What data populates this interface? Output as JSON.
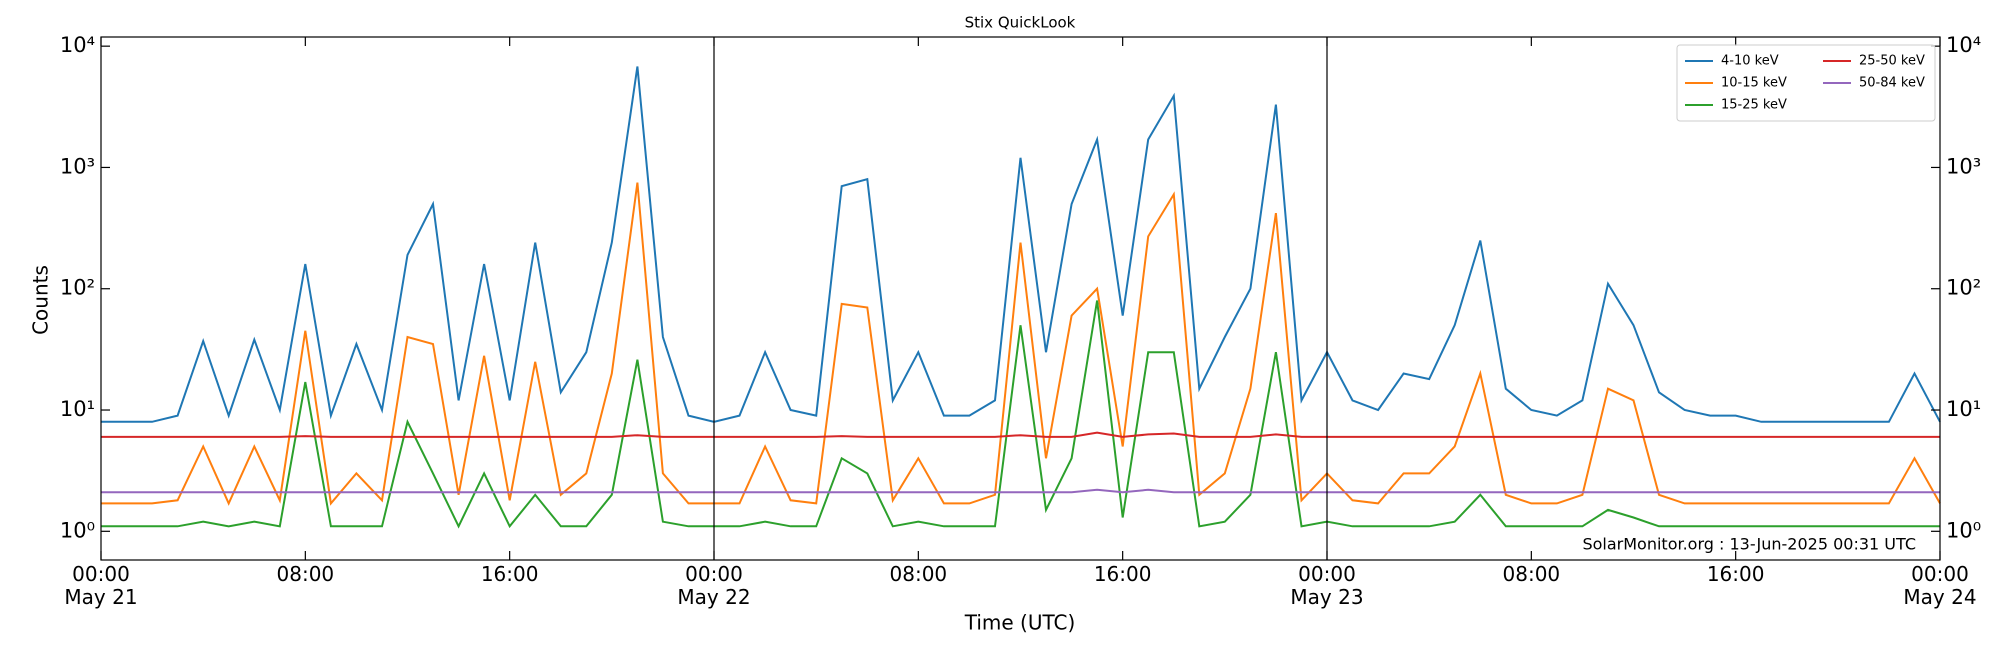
{
  "chart_data": {
    "type": "line",
    "title": "Stix QuickLook",
    "xlabel": "Time (UTC)",
    "ylabel": "Counts",
    "annotation": "SolarMonitor.org : 13-Jun-2025 00:31 UTC",
    "log_y": true,
    "legend": "upper right",
    "xlim": [
      "May 21 00:00",
      "May 24 00:00"
    ],
    "xticks": [
      {
        "value": "May 21 00:00",
        "label": "00:00\nMay 21"
      },
      {
        "value": "May 21 08:00",
        "label": "08:00"
      },
      {
        "value": "May 21 16:00",
        "label": "16:00"
      },
      {
        "value": "May 22 00:00",
        "label": "00:00\nMay 22"
      },
      {
        "value": "May 22 08:00",
        "label": "08:00"
      },
      {
        "value": "May 22 16:00",
        "label": "16:00"
      },
      {
        "value": "May 23 00:00",
        "label": "00:00\nMay 23"
      },
      {
        "value": "May 23 08:00",
        "label": "08:00"
      },
      {
        "value": "May 23 16:00",
        "label": "16:00"
      },
      {
        "value": "May 24 00:00",
        "label": "00:00\nMay 24"
      }
    ],
    "vlines": [
      "May 22 00:00",
      "May 23 00:00"
    ],
    "ylim": [
      0.58,
      11900
    ],
    "yticks": [
      {
        "value": 1,
        "label": "10⁰"
      },
      {
        "value": 10,
        "label": "10¹"
      },
      {
        "value": 100,
        "label": "10²"
      },
      {
        "value": 1000,
        "label": "10³"
      },
      {
        "value": 10000,
        "label": "10⁴"
      }
    ],
    "x": [
      "May 21 00:00",
      "May 21 01:00",
      "May 21 02:00",
      "May 21 03:00",
      "May 21 04:00",
      "May 21 05:00",
      "May 21 06:00",
      "May 21 07:00",
      "May 21 08:00",
      "May 21 09:00",
      "May 21 10:00",
      "May 21 11:00",
      "May 21 12:00",
      "May 21 13:00",
      "May 21 14:00",
      "May 21 15:00",
      "May 21 16:00",
      "May 21 17:00",
      "May 21 18:00",
      "May 21 19:00",
      "May 21 20:00",
      "May 21 21:00",
      "May 21 22:00",
      "May 21 23:00",
      "May 22 00:00",
      "May 22 01:00",
      "May 22 02:00",
      "May 22 03:00",
      "May 22 04:00",
      "May 22 05:00",
      "May 22 06:00",
      "May 22 07:00",
      "May 22 08:00",
      "May 22 09:00",
      "May 22 10:00",
      "May 22 11:00",
      "May 22 12:00",
      "May 22 13:00",
      "May 22 14:00",
      "May 22 15:00",
      "May 22 16:00",
      "May 22 17:00",
      "May 22 18:00",
      "May 22 19:00",
      "May 22 20:00",
      "May 22 21:00",
      "May 22 22:00",
      "May 22 23:00",
      "May 23 00:00",
      "May 23 01:00",
      "May 23 02:00",
      "May 23 03:00",
      "May 23 04:00",
      "May 23 05:00",
      "May 23 06:00",
      "May 23 07:00",
      "May 23 08:00",
      "May 23 09:00",
      "May 23 10:00",
      "May 23 11:00",
      "May 23 12:00",
      "May 23 13:00",
      "May 23 14:00",
      "May 23 15:00",
      "May 23 16:00",
      "May 23 17:00",
      "May 23 18:00",
      "May 23 19:00",
      "May 23 20:00",
      "May 23 21:00",
      "May 23 22:00",
      "May 23 23:00",
      "May 24 00:00"
    ],
    "series": [
      {
        "name": "4-10 keV",
        "color": "#1f77b4",
        "values": [
          8,
          8,
          8,
          9,
          37,
          9,
          38,
          10,
          160,
          9,
          35,
          10,
          190,
          500,
          12,
          160,
          12,
          240,
          14,
          30,
          240,
          6800,
          40,
          9,
          8,
          9,
          30,
          10,
          9,
          700,
          800,
          12,
          30,
          9,
          9,
          12,
          1200,
          30,
          500,
          1700,
          60,
          1700,
          3900,
          15,
          40,
          100,
          3300,
          12,
          30,
          12,
          10,
          20,
          18,
          50,
          250,
          15,
          10,
          9,
          12,
          110,
          50,
          14,
          10,
          9,
          9,
          8,
          8,
          8,
          8,
          8,
          8,
          20,
          8
        ]
      },
      {
        "name": "10-15 keV",
        "color": "#ff7f0e",
        "values": [
          1.7,
          1.7,
          1.7,
          1.8,
          5,
          1.7,
          5,
          1.8,
          45,
          1.7,
          3,
          1.8,
          40,
          35,
          2,
          28,
          1.8,
          25,
          2,
          3,
          20,
          750,
          3,
          1.7,
          1.7,
          1.7,
          5,
          1.8,
          1.7,
          75,
          70,
          1.8,
          4,
          1.7,
          1.7,
          2,
          240,
          4,
          60,
          100,
          5,
          270,
          600,
          2,
          3,
          15,
          420,
          1.8,
          3,
          1.8,
          1.7,
          3,
          3,
          5,
          20,
          2,
          1.7,
          1.7,
          2,
          15,
          12,
          2,
          1.7,
          1.7,
          1.7,
          1.7,
          1.7,
          1.7,
          1.7,
          1.7,
          1.7,
          4,
          1.7
        ]
      },
      {
        "name": "15-25 keV",
        "color": "#2ca02c",
        "values": [
          1.1,
          1.1,
          1.1,
          1.1,
          1.2,
          1.1,
          1.2,
          1.1,
          17,
          1.1,
          1.1,
          1.1,
          8,
          3,
          1.1,
          3,
          1.1,
          2,
          1.1,
          1.1,
          2,
          26,
          1.2,
          1.1,
          1.1,
          1.1,
          1.2,
          1.1,
          1.1,
          4,
          3,
          1.1,
          1.2,
          1.1,
          1.1,
          1.1,
          50,
          1.5,
          4,
          80,
          1.3,
          30,
          30,
          1.1,
          1.2,
          2,
          30,
          1.1,
          1.2,
          1.1,
          1.1,
          1.1,
          1.1,
          1.2,
          2,
          1.1,
          1.1,
          1.1,
          1.1,
          1.5,
          1.3,
          1.1,
          1.1,
          1.1,
          1.1,
          1.1,
          1.1,
          1.1,
          1.1,
          1.1,
          1.1,
          1.1,
          1.1
        ]
      },
      {
        "name": "25-50 keV",
        "color": "#d62728",
        "values": [
          6,
          6,
          6,
          6,
          6,
          6,
          6,
          6,
          6.1,
          6,
          6,
          6,
          6,
          6,
          6,
          6,
          6,
          6,
          6,
          6,
          6,
          6.2,
          6,
          6,
          6,
          6,
          6,
          6,
          6,
          6.1,
          6,
          6,
          6,
          6,
          6,
          6,
          6.2,
          6,
          6,
          6.5,
          6,
          6.3,
          6.4,
          6,
          6,
          6,
          6.3,
          6,
          6,
          6,
          6,
          6,
          6,
          6,
          6,
          6,
          6,
          6,
          6,
          6,
          6,
          6,
          6,
          6,
          6,
          6,
          6,
          6,
          6,
          6,
          6,
          6,
          6
        ]
      },
      {
        "name": "50-84 keV",
        "color": "#9467bd",
        "values": [
          2.1,
          2.1,
          2.1,
          2.1,
          2.1,
          2.1,
          2.1,
          2.1,
          2.1,
          2.1,
          2.1,
          2.1,
          2.1,
          2.1,
          2.1,
          2.1,
          2.1,
          2.1,
          2.1,
          2.1,
          2.1,
          2.1,
          2.1,
          2.1,
          2.1,
          2.1,
          2.1,
          2.1,
          2.1,
          2.1,
          2.1,
          2.1,
          2.1,
          2.1,
          2.1,
          2.1,
          2.1,
          2.1,
          2.1,
          2.2,
          2.1,
          2.2,
          2.1,
          2.1,
          2.1,
          2.1,
          2.1,
          2.1,
          2.1,
          2.1,
          2.1,
          2.1,
          2.1,
          2.1,
          2.1,
          2.1,
          2.1,
          2.1,
          2.1,
          2.1,
          2.1,
          2.1,
          2.1,
          2.1,
          2.1,
          2.1,
          2.1,
          2.1,
          2.1,
          2.1,
          2.1,
          2.1,
          2.1
        ]
      }
    ]
  }
}
